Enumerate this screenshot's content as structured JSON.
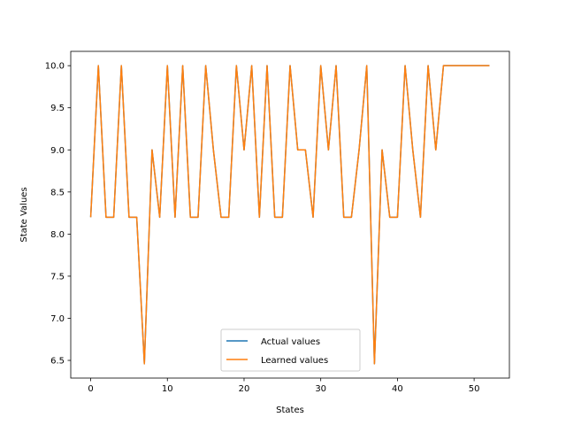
{
  "chart_data": {
    "type": "line",
    "title": "",
    "xlabel": "States",
    "ylabel": "State Values",
    "xlim": [
      -2.6,
      54.6
    ],
    "ylim": [
      6.29,
      10.17
    ],
    "xticks": [
      0,
      10,
      20,
      30,
      40,
      50
    ],
    "yticks": [
      6.5,
      7.0,
      7.5,
      8.0,
      8.5,
      9.0,
      9.5,
      10.0
    ],
    "ytick_labels": [
      "6.5",
      "7.0",
      "7.5",
      "8.0",
      "8.5",
      "9.0",
      "9.5",
      "10.0"
    ],
    "grid": false,
    "legend": "lower-center",
    "x": [
      0,
      1,
      2,
      3,
      4,
      5,
      6,
      7,
      8,
      9,
      10,
      11,
      12,
      13,
      14,
      15,
      16,
      17,
      18,
      19,
      20,
      21,
      22,
      23,
      24,
      25,
      26,
      27,
      28,
      29,
      30,
      31,
      32,
      33,
      34,
      35,
      36,
      37,
      38,
      39,
      40,
      41,
      42,
      43,
      44,
      45,
      46,
      47,
      48,
      49,
      50,
      51,
      52
    ],
    "series": [
      {
        "name": "Actual values",
        "color": "#1f77b4",
        "values": [
          8.2,
          10,
          8.2,
          8.2,
          10,
          8.2,
          8.2,
          6.46,
          9,
          8.2,
          10,
          8.2,
          10,
          8.2,
          8.2,
          10,
          9,
          8.2,
          8.2,
          10,
          9,
          10,
          8.2,
          10,
          8.2,
          8.2,
          10,
          9,
          9,
          8.2,
          10,
          9,
          10,
          8.2,
          8.2,
          9,
          10,
          6.46,
          9,
          8.2,
          8.2,
          10,
          9,
          8.2,
          10,
          9,
          10,
          10,
          10,
          10,
          10,
          10,
          10
        ]
      },
      {
        "name": "Learned values",
        "color": "#ff7f0e",
        "values": [
          8.2,
          10,
          8.2,
          8.2,
          10,
          8.2,
          8.2,
          6.46,
          9,
          8.2,
          10,
          8.2,
          10,
          8.2,
          8.2,
          10,
          9,
          8.2,
          8.2,
          10,
          9,
          10,
          8.2,
          10,
          8.2,
          8.2,
          10,
          9,
          9,
          8.2,
          10,
          9,
          10,
          8.2,
          8.2,
          9,
          10,
          6.46,
          9,
          8.2,
          8.2,
          10,
          9,
          8.2,
          10,
          9,
          10,
          10,
          10,
          10,
          10,
          10,
          10
        ]
      }
    ]
  }
}
